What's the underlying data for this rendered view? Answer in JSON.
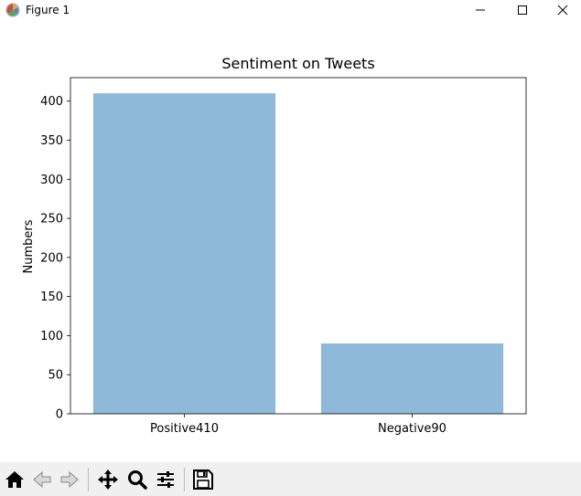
{
  "window": {
    "title": "Figure 1",
    "icons": {
      "app": "matplotlib-icon",
      "minimize": "minimize-icon",
      "maximize": "maximize-icon",
      "close": "close-icon"
    }
  },
  "chart_data": {
    "type": "bar",
    "title": "Sentiment on Tweets",
    "xlabel": "",
    "ylabel": "Numbers",
    "categories": [
      "Positive410",
      "Negative90"
    ],
    "values": [
      410,
      90
    ],
    "ylim": [
      0,
      430
    ],
    "yticks": [
      0,
      50,
      100,
      150,
      200,
      250,
      300,
      350,
      400
    ],
    "bar_color": "#8fb9d9",
    "grid": false
  },
  "toolbar": {
    "items": [
      {
        "name": "home-icon",
        "tooltip": "Home"
      },
      {
        "name": "back-icon",
        "tooltip": "Back"
      },
      {
        "name": "forward-icon",
        "tooltip": "Forward"
      },
      {
        "name": "pan-icon",
        "tooltip": "Pan"
      },
      {
        "name": "zoom-icon",
        "tooltip": "Zoom"
      },
      {
        "name": "configure-subplots-icon",
        "tooltip": "Subplots"
      },
      {
        "name": "save-icon",
        "tooltip": "Save"
      }
    ]
  }
}
